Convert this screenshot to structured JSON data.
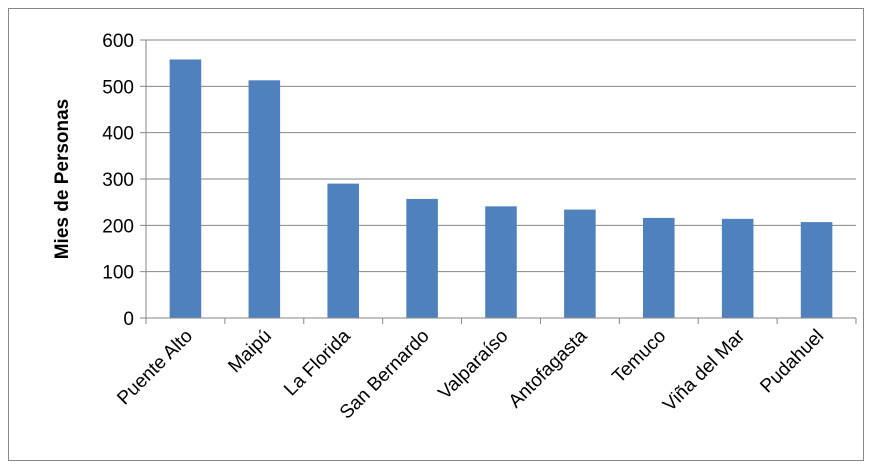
{
  "chart_data": {
    "type": "bar",
    "title": "",
    "xlabel": "",
    "ylabel": "Mies de Personas",
    "categories": [
      "Puente Alto",
      "Maipú",
      "La Florida",
      "San Bernardo",
      "Valparaíso",
      "Antofagasta",
      "Temuco",
      "Viña del Mar",
      "Pudahuel"
    ],
    "values": [
      558,
      513,
      290,
      257,
      241,
      234,
      216,
      214,
      207
    ],
    "ylim": [
      0,
      600
    ],
    "yticks": [
      0,
      100,
      200,
      300,
      400,
      500,
      600
    ],
    "grid": true,
    "legend": "none",
    "bar_color": "#4F81BD"
  }
}
